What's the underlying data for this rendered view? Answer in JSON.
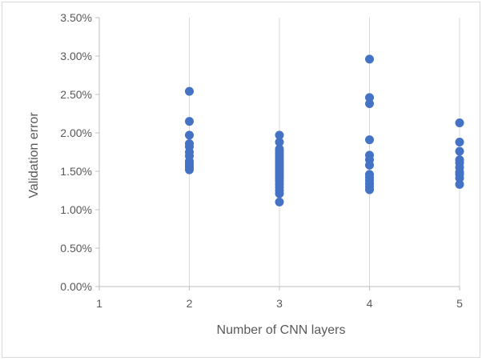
{
  "chart_data": {
    "type": "scatter",
    "title": "",
    "xlabel": "Number of CNN layers",
    "ylabel": "Validation error",
    "xlim": [
      1,
      5
    ],
    "ylim": [
      0,
      0.035
    ],
    "x_ticks": [
      1,
      2,
      3,
      4,
      5
    ],
    "x_tick_labels": [
      "1",
      "2",
      "3",
      "4",
      "5"
    ],
    "y_ticks": [
      0,
      0.005,
      0.01,
      0.015,
      0.02,
      0.025,
      0.03,
      0.035
    ],
    "y_tick_labels": [
      "0.00%",
      "0.50%",
      "1.00%",
      "1.50%",
      "2.00%",
      "2.50%",
      "3.00%",
      "3.50%"
    ],
    "grid": "vertical",
    "marker_color": "#4472C4",
    "series": [
      {
        "name": "Validation error",
        "points": [
          [
            2,
            0.0254
          ],
          [
            2,
            0.0215
          ],
          [
            2,
            0.0197
          ],
          [
            2,
            0.0186
          ],
          [
            2,
            0.0182
          ],
          [
            2,
            0.0175
          ],
          [
            2,
            0.017
          ],
          [
            2,
            0.0163
          ],
          [
            2,
            0.016
          ],
          [
            2,
            0.0157
          ],
          [
            2,
            0.0155
          ],
          [
            2,
            0.0152
          ],
          [
            3,
            0.0197
          ],
          [
            3,
            0.0188
          ],
          [
            3,
            0.0179
          ],
          [
            3,
            0.0176
          ],
          [
            3,
            0.0173
          ],
          [
            3,
            0.017
          ],
          [
            3,
            0.0167
          ],
          [
            3,
            0.0164
          ],
          [
            3,
            0.0161
          ],
          [
            3,
            0.0158
          ],
          [
            3,
            0.0155
          ],
          [
            3,
            0.0152
          ],
          [
            3,
            0.0149
          ],
          [
            3,
            0.0146
          ],
          [
            3,
            0.0143
          ],
          [
            3,
            0.014
          ],
          [
            3,
            0.0137
          ],
          [
            3,
            0.0133
          ],
          [
            3,
            0.0129
          ],
          [
            3,
            0.0125
          ],
          [
            3,
            0.0121
          ],
          [
            3,
            0.011
          ],
          [
            4,
            0.0296
          ],
          [
            4,
            0.0246
          ],
          [
            4,
            0.0238
          ],
          [
            4,
            0.0191
          ],
          [
            4,
            0.0171
          ],
          [
            4,
            0.0165
          ],
          [
            4,
            0.0158
          ],
          [
            4,
            0.0146
          ],
          [
            4,
            0.0142
          ],
          [
            4,
            0.0138
          ],
          [
            4,
            0.0134
          ],
          [
            4,
            0.013
          ],
          [
            4,
            0.0126
          ],
          [
            5,
            0.0213
          ],
          [
            5,
            0.0188
          ],
          [
            5,
            0.0176
          ],
          [
            5,
            0.0165
          ],
          [
            5,
            0.0161
          ],
          [
            5,
            0.0155
          ],
          [
            5,
            0.0149
          ],
          [
            5,
            0.0146
          ],
          [
            5,
            0.0141
          ],
          [
            5,
            0.0133
          ]
        ]
      }
    ]
  }
}
